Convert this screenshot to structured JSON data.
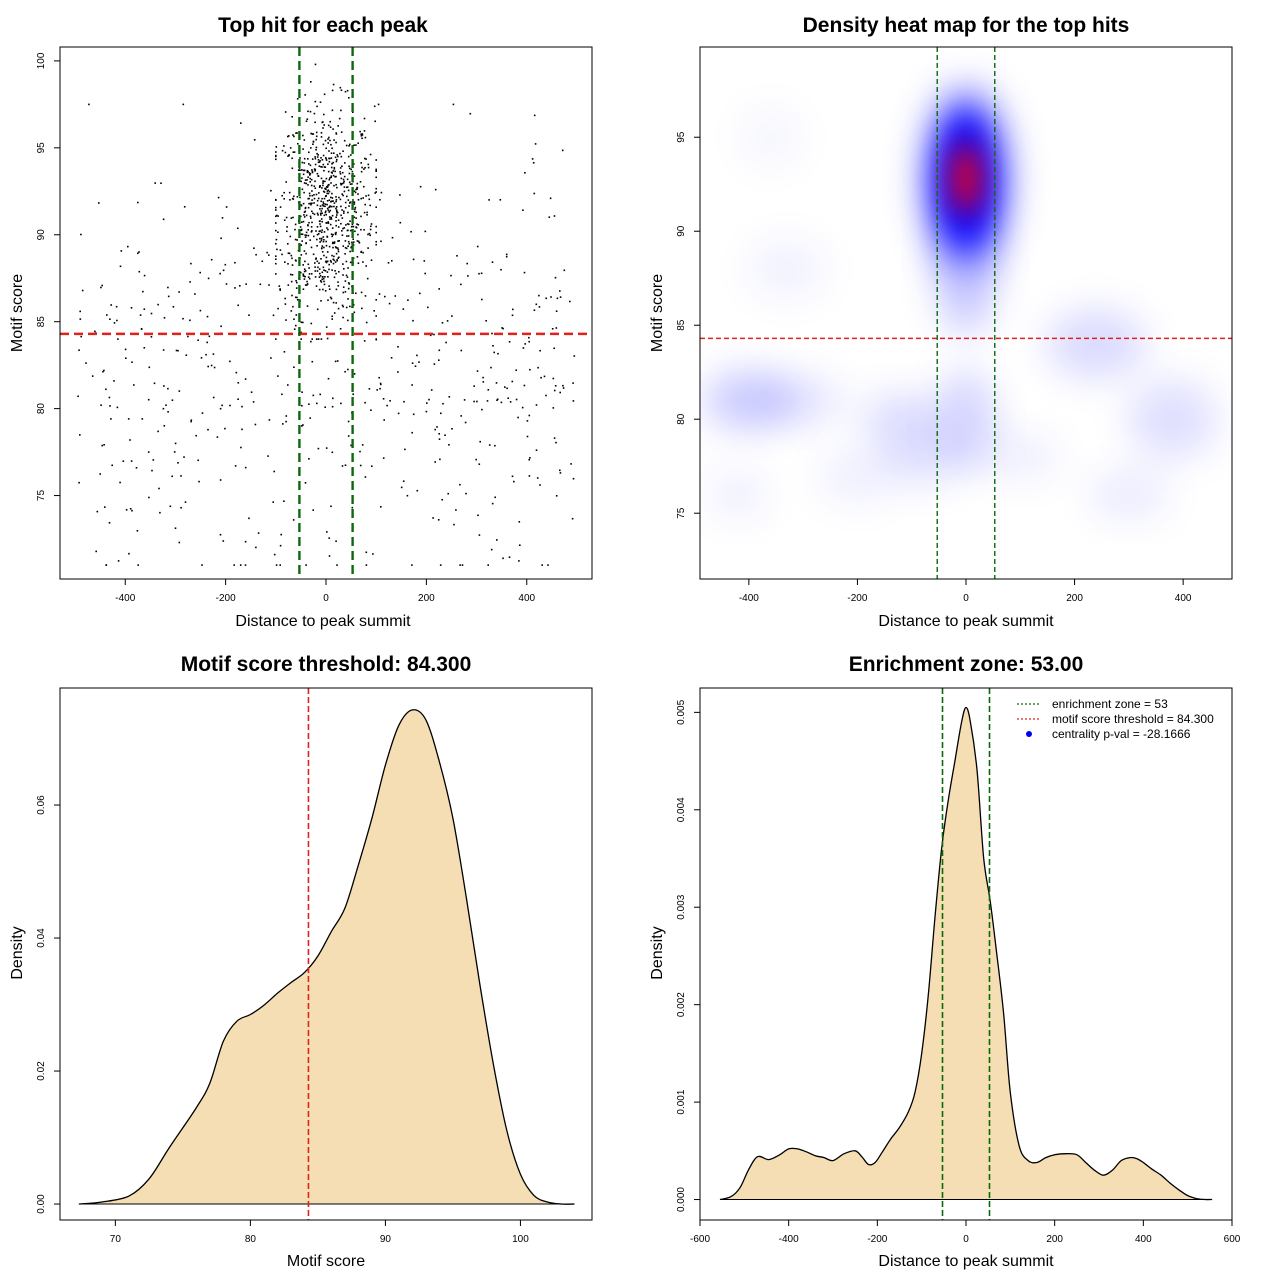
{
  "colors": {
    "threshold_line": "#e0211f",
    "zone_line": "#0a6a0a",
    "density_fill": "#f5deb3",
    "points": "#000000",
    "heat_low": "#ffffff",
    "heat_mid": "#0000ff",
    "heat_high": "#ff0000"
  },
  "chart_data": [
    {
      "id": "scatter",
      "type": "scatter",
      "title": "Top hit for each peak",
      "xlabel": "Distance to peak summit",
      "ylabel": "Motif score",
      "xlim": [
        -530,
        530
      ],
      "ylim": [
        70.2,
        100.8
      ],
      "xticks": [
        -400,
        -200,
        0,
        200,
        400
      ],
      "yticks": [
        75,
        80,
        85,
        90,
        95,
        100
      ],
      "hlines": [
        84.3
      ],
      "vlines": [
        -53,
        53
      ],
      "point_model": {
        "description": "approximately 1400 peaks: dense central cluster near x=0, score ~92; sparse background spread",
        "clusters": [
          {
            "n": 800,
            "x_mean": 0,
            "x_sd": 48,
            "y_mean": 91.3,
            "y_sd": 3.0,
            "x_range": [
              -100,
              100
            ],
            "y_range": [
              84,
              99.8
            ]
          },
          {
            "n": 560,
            "x_mean": 0,
            "x_sd": 0,
            "y_mean": 82,
            "y_sd": 6,
            "x_range": [
              -495,
              495
            ],
            "y_range": [
              71,
              97.5
            ],
            "uniform_x": true
          }
        ]
      }
    },
    {
      "id": "heatmap",
      "type": "heatmap",
      "title": "Density heat map for the top hits",
      "xlabel": "Distance to peak summit",
      "ylabel": "Motif score",
      "xlim": [
        -490,
        490
      ],
      "ylim": [
        71.5,
        99.8
      ],
      "xticks": [
        -400,
        -200,
        0,
        200,
        400
      ],
      "yticks": [
        75,
        80,
        85,
        90,
        95
      ],
      "hlines": [
        84.3
      ],
      "vlines": [
        -53,
        53
      ],
      "hotspot": {
        "x": 0,
        "y": 92.8
      }
    },
    {
      "id": "score-density",
      "type": "area",
      "title": "Motif score threshold: 84.300",
      "xlabel": "Motif score",
      "ylabel": "Density",
      "xlim": [
        65.9,
        105.3
      ],
      "ylim": [
        -0.0024,
        0.0776
      ],
      "xticks": [
        70,
        80,
        90,
        100
      ],
      "yticks": [
        0,
        0.02,
        0.04,
        0.06
      ],
      "ytick_labels": [
        "0.00",
        "0.02",
        "0.04",
        "0.06"
      ],
      "vlines": [
        84.3
      ],
      "x": [
        67.3,
        69,
        71,
        72.5,
        74,
        76,
        77,
        78,
        79,
        80,
        81,
        82,
        83,
        84,
        85,
        86,
        87,
        88,
        89,
        90,
        91,
        92,
        93,
        94,
        95,
        96,
        97,
        98,
        99,
        100,
        101,
        102,
        103,
        104
      ],
      "y": [
        0,
        0.0003,
        0.0012,
        0.0038,
        0.0085,
        0.0145,
        0.0182,
        0.0245,
        0.0275,
        0.0285,
        0.0299,
        0.0317,
        0.0333,
        0.0348,
        0.0373,
        0.041,
        0.0445,
        0.051,
        0.058,
        0.066,
        0.072,
        0.0743,
        0.0728,
        0.0665,
        0.058,
        0.046,
        0.033,
        0.021,
        0.011,
        0.0045,
        0.0013,
        0.0003,
        0,
        0
      ]
    },
    {
      "id": "distance-density",
      "type": "area",
      "title": "Enrichment zone: 53.00",
      "xlabel": "Distance to peak summit",
      "ylabel": "Density",
      "xlim": [
        -600,
        600
      ],
      "ylim": [
        -0.00021,
        0.00525
      ],
      "xticks": [
        -600,
        -400,
        -200,
        0,
        200,
        400,
        600
      ],
      "yticks": [
        0,
        0.001,
        0.002,
        0.003,
        0.004,
        0.005
      ],
      "ytick_labels": [
        "0.000",
        "0.001",
        "0.002",
        "0.003",
        "0.004",
        "0.005"
      ],
      "vlines": [
        -53,
        53
      ],
      "x": [
        -555,
        -530,
        -510,
        -490,
        -470,
        -445,
        -420,
        -400,
        -380,
        -360,
        -340,
        -320,
        -300,
        -275,
        -250,
        -235,
        -220,
        -205,
        -190,
        -170,
        -150,
        -130,
        -115,
        -100,
        -85,
        -70,
        -55,
        -40,
        -25,
        -10,
        0,
        10,
        25,
        40,
        55,
        70,
        85,
        100,
        120,
        140,
        160,
        180,
        200,
        225,
        250,
        270,
        290,
        310,
        330,
        350,
        370,
        385,
        400,
        420,
        440,
        460,
        480,
        500,
        520,
        540,
        555
      ],
      "y": [
        0,
        3e-05,
        0.00012,
        0.00031,
        0.00044,
        0.00041,
        0.00046,
        0.00052,
        0.00052,
        0.00049,
        0.00045,
        0.00043,
        0.0004,
        0.00047,
        0.0005,
        0.00044,
        0.00036,
        0.00038,
        0.00048,
        0.00062,
        0.00074,
        0.0009,
        0.0011,
        0.0015,
        0.0021,
        0.0029,
        0.0036,
        0.0041,
        0.0045,
        0.0049,
        0.00505,
        0.0049,
        0.0044,
        0.0035,
        0.00305,
        0.0025,
        0.0019,
        0.0011,
        0.00055,
        0.0004,
        0.00038,
        0.00043,
        0.00046,
        0.00047,
        0.00046,
        0.00038,
        0.0003,
        0.00025,
        0.0003,
        0.0004,
        0.00043,
        0.00042,
        0.00038,
        0.00031,
        0.00025,
        0.00017,
        0.0001,
        4e-05,
        1e-05,
        0,
        0
      ],
      "legend": {
        "position": "top-right",
        "items": [
          {
            "label": "enrichment zone = 53",
            "kind": "dotted-line",
            "color_key": "zone_line"
          },
          {
            "label": "motif score threshold = 84.300",
            "kind": "dotted-line",
            "color_key": "threshold_line"
          },
          {
            "label": "centrality p-val = -28.1666",
            "kind": "dot",
            "color_key": "heat_mid"
          }
        ]
      }
    }
  ]
}
